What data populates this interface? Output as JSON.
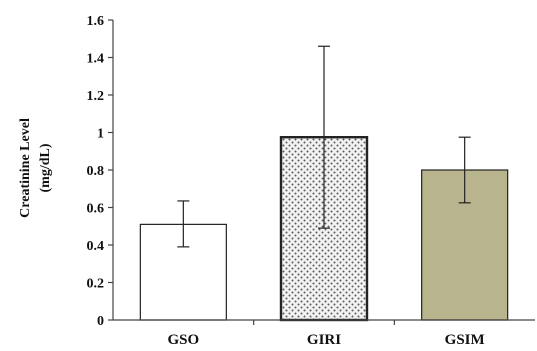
{
  "chart_data": {
    "type": "bar",
    "ylabel_lines": [
      "Creatinine Level",
      "(mg/dL)"
    ],
    "categories": [
      "GSO",
      "GIRI",
      "GSIM"
    ],
    "values": [
      0.51,
      0.975,
      0.8
    ],
    "error_low": [
      0.39,
      0.49,
      0.625
    ],
    "error_high": [
      0.635,
      1.46,
      0.975
    ],
    "bar_fills": [
      "#ffffff",
      "dotted",
      "#b8b48e"
    ],
    "ylim": [
      0,
      1.6
    ],
    "yticks": [
      "0",
      "0.2",
      "0.4",
      "0.6",
      "0.8",
      "1",
      "1.2",
      "1.4",
      "1.6"
    ],
    "grid": false,
    "legend": "none"
  }
}
